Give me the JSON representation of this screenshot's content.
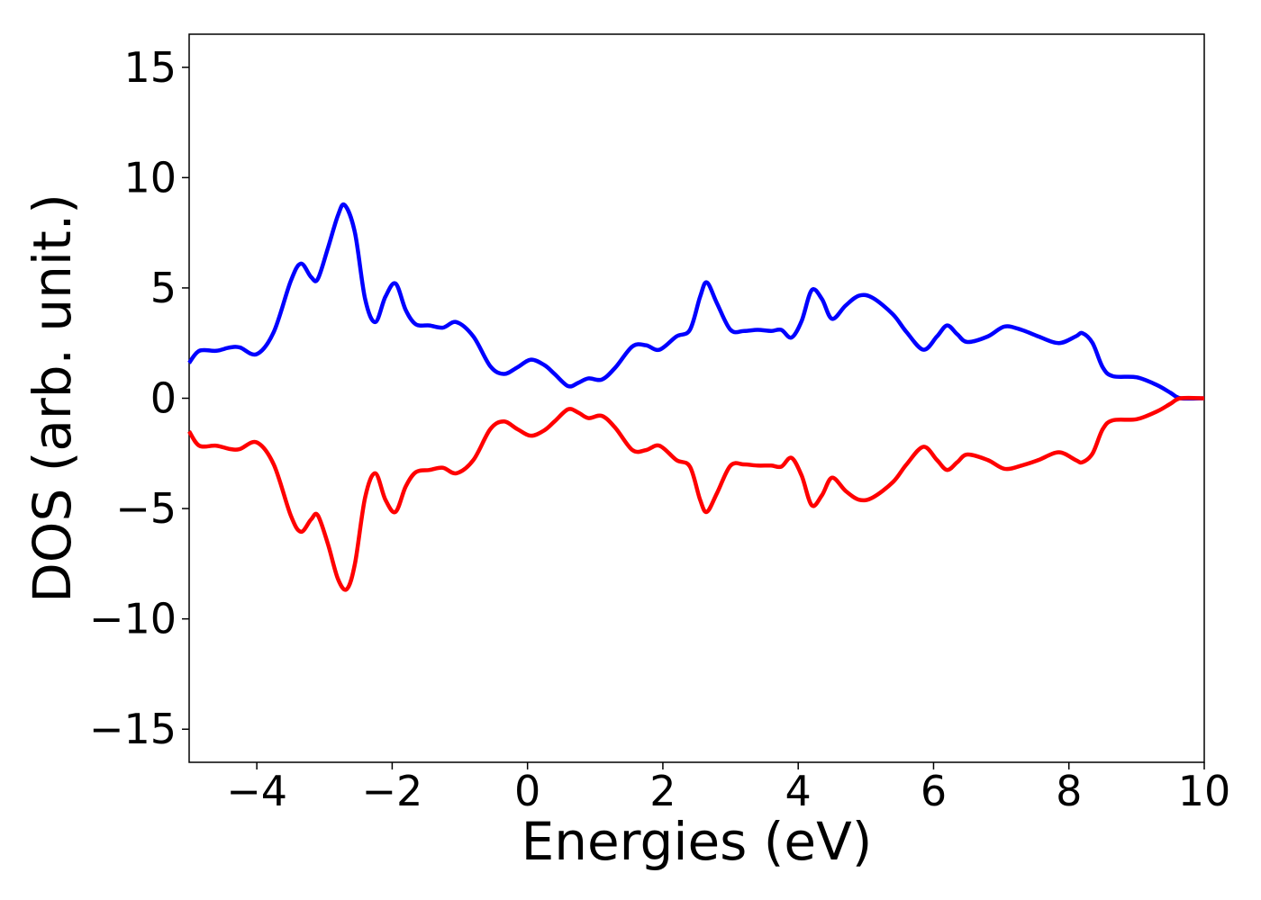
{
  "chart_data": {
    "type": "line",
    "title": "",
    "xlabel": "Energies (eV)",
    "ylabel": "DOS (arb. unit.)",
    "xlim": [
      -5,
      10
    ],
    "ylim": [
      -16.5,
      16.5
    ],
    "grid": false,
    "legend": "none",
    "xticks": [
      -4,
      -2,
      0,
      2,
      4,
      6,
      8,
      10
    ],
    "yticks": [
      -15,
      -10,
      -5,
      0,
      5,
      10,
      15
    ],
    "xtick_labels": [
      "−4",
      "−2",
      "0",
      "2",
      "4",
      "6",
      "8",
      "10"
    ],
    "ytick_labels": [
      "−15",
      "−10",
      "−5",
      "0",
      "5",
      "10",
      "15"
    ],
    "series": [
      {
        "color": "#0000ff",
        "points": [
          [
            -5.0,
            1.6
          ],
          [
            -4.85,
            2.15
          ],
          [
            -4.6,
            2.15
          ],
          [
            -4.4,
            2.3
          ],
          [
            -4.25,
            2.3
          ],
          [
            -4.0,
            2.0
          ],
          [
            -3.75,
            3.0
          ],
          [
            -3.5,
            5.3
          ],
          [
            -3.35,
            6.1
          ],
          [
            -3.2,
            5.5
          ],
          [
            -3.1,
            5.4
          ],
          [
            -2.95,
            6.8
          ],
          [
            -2.8,
            8.3
          ],
          [
            -2.7,
            8.75
          ],
          [
            -2.55,
            7.5
          ],
          [
            -2.4,
            4.5
          ],
          [
            -2.25,
            3.45
          ],
          [
            -2.1,
            4.6
          ],
          [
            -1.95,
            5.2
          ],
          [
            -1.8,
            4.0
          ],
          [
            -1.65,
            3.35
          ],
          [
            -1.45,
            3.3
          ],
          [
            -1.25,
            3.2
          ],
          [
            -1.05,
            3.45
          ],
          [
            -0.8,
            2.8
          ],
          [
            -0.55,
            1.45
          ],
          [
            -0.35,
            1.1
          ],
          [
            -0.15,
            1.4
          ],
          [
            0.05,
            1.75
          ],
          [
            0.25,
            1.5
          ],
          [
            0.4,
            1.1
          ],
          [
            0.6,
            0.55
          ],
          [
            0.75,
            0.7
          ],
          [
            0.9,
            0.9
          ],
          [
            1.1,
            0.85
          ],
          [
            1.3,
            1.4
          ],
          [
            1.55,
            2.35
          ],
          [
            1.75,
            2.4
          ],
          [
            1.95,
            2.2
          ],
          [
            2.2,
            2.8
          ],
          [
            2.4,
            3.1
          ],
          [
            2.55,
            4.6
          ],
          [
            2.65,
            5.25
          ],
          [
            2.8,
            4.3
          ],
          [
            3.0,
            3.1
          ],
          [
            3.2,
            3.05
          ],
          [
            3.4,
            3.1
          ],
          [
            3.6,
            3.05
          ],
          [
            3.75,
            3.1
          ],
          [
            3.9,
            2.75
          ],
          [
            4.05,
            3.5
          ],
          [
            4.2,
            4.9
          ],
          [
            4.35,
            4.5
          ],
          [
            4.5,
            3.6
          ],
          [
            4.7,
            4.2
          ],
          [
            4.9,
            4.65
          ],
          [
            5.1,
            4.55
          ],
          [
            5.4,
            3.8
          ],
          [
            5.6,
            3.0
          ],
          [
            5.85,
            2.2
          ],
          [
            6.05,
            2.8
          ],
          [
            6.2,
            3.3
          ],
          [
            6.35,
            2.9
          ],
          [
            6.5,
            2.55
          ],
          [
            6.8,
            2.8
          ],
          [
            7.05,
            3.25
          ],
          [
            7.3,
            3.1
          ],
          [
            7.55,
            2.8
          ],
          [
            7.85,
            2.5
          ],
          [
            8.1,
            2.8
          ],
          [
            8.2,
            2.95
          ],
          [
            8.35,
            2.5
          ],
          [
            8.5,
            1.4
          ],
          [
            8.65,
            1.0
          ],
          [
            9.0,
            0.95
          ],
          [
            9.3,
            0.6
          ],
          [
            9.5,
            0.25
          ],
          [
            9.65,
            0.0
          ],
          [
            10.0,
            0.0
          ]
        ]
      },
      {
        "color": "#ff0000",
        "points": [
          [
            -5.0,
            -1.5
          ],
          [
            -4.85,
            -2.15
          ],
          [
            -4.6,
            -2.15
          ],
          [
            -4.4,
            -2.3
          ],
          [
            -4.25,
            -2.3
          ],
          [
            -4.0,
            -2.0
          ],
          [
            -3.75,
            -3.0
          ],
          [
            -3.5,
            -5.3
          ],
          [
            -3.35,
            -6.05
          ],
          [
            -3.2,
            -5.5
          ],
          [
            -3.1,
            -5.3
          ],
          [
            -2.95,
            -6.6
          ],
          [
            -2.8,
            -8.2
          ],
          [
            -2.67,
            -8.65
          ],
          [
            -2.55,
            -7.5
          ],
          [
            -2.4,
            -4.5
          ],
          [
            -2.25,
            -3.4
          ],
          [
            -2.1,
            -4.6
          ],
          [
            -1.95,
            -5.15
          ],
          [
            -1.8,
            -4.0
          ],
          [
            -1.65,
            -3.35
          ],
          [
            -1.45,
            -3.25
          ],
          [
            -1.25,
            -3.15
          ],
          [
            -1.05,
            -3.4
          ],
          [
            -0.8,
            -2.8
          ],
          [
            -0.55,
            -1.4
          ],
          [
            -0.35,
            -1.05
          ],
          [
            -0.15,
            -1.4
          ],
          [
            0.05,
            -1.7
          ],
          [
            0.25,
            -1.45
          ],
          [
            0.4,
            -1.05
          ],
          [
            0.6,
            -0.5
          ],
          [
            0.75,
            -0.65
          ],
          [
            0.9,
            -0.9
          ],
          [
            1.1,
            -0.8
          ],
          [
            1.3,
            -1.35
          ],
          [
            1.55,
            -2.35
          ],
          [
            1.75,
            -2.35
          ],
          [
            1.95,
            -2.15
          ],
          [
            2.2,
            -2.8
          ],
          [
            2.4,
            -3.1
          ],
          [
            2.55,
            -4.6
          ],
          [
            2.65,
            -5.15
          ],
          [
            2.8,
            -4.3
          ],
          [
            3.0,
            -3.05
          ],
          [
            3.2,
            -3.0
          ],
          [
            3.4,
            -3.05
          ],
          [
            3.6,
            -3.05
          ],
          [
            3.75,
            -3.1
          ],
          [
            3.9,
            -2.7
          ],
          [
            4.05,
            -3.5
          ],
          [
            4.2,
            -4.85
          ],
          [
            4.35,
            -4.4
          ],
          [
            4.5,
            -3.6
          ],
          [
            4.7,
            -4.2
          ],
          [
            4.9,
            -4.6
          ],
          [
            5.1,
            -4.5
          ],
          [
            5.4,
            -3.8
          ],
          [
            5.6,
            -3.0
          ],
          [
            5.85,
            -2.2
          ],
          [
            6.05,
            -2.8
          ],
          [
            6.2,
            -3.25
          ],
          [
            6.35,
            -2.9
          ],
          [
            6.5,
            -2.55
          ],
          [
            6.8,
            -2.8
          ],
          [
            7.05,
            -3.2
          ],
          [
            7.3,
            -3.05
          ],
          [
            7.55,
            -2.8
          ],
          [
            7.85,
            -2.45
          ],
          [
            8.1,
            -2.8
          ],
          [
            8.2,
            -2.9
          ],
          [
            8.35,
            -2.5
          ],
          [
            8.5,
            -1.4
          ],
          [
            8.65,
            -1.0
          ],
          [
            9.0,
            -0.95
          ],
          [
            9.3,
            -0.6
          ],
          [
            9.5,
            -0.25
          ],
          [
            9.65,
            0.0
          ],
          [
            10.0,
            0.0
          ]
        ]
      }
    ]
  }
}
